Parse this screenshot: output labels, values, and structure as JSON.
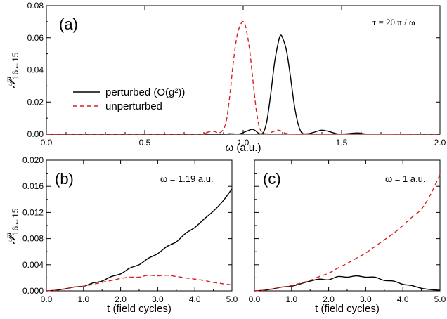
{
  "colors": {
    "perturbed": "#000000",
    "unperturbed": "#d62020"
  },
  "chart_data": [
    {
      "id": "a",
      "type": "line",
      "panel_label": "(a)",
      "annotation": "τ = 20 π / ω",
      "xlabel": "ω (a.u.)",
      "ylabel_main": "𝒫",
      "ylabel_sub": "16←15",
      "xlim": [
        0.0,
        2.0
      ],
      "ylim": [
        0.0,
        0.08
      ],
      "xticks": [
        "0.0",
        "0.5",
        "1.0",
        "1.5",
        "2.0"
      ],
      "yticks": [
        "0.00",
        "0.02",
        "0.04",
        "0.06",
        "0.08"
      ],
      "legend": {
        "position": "center-left",
        "entries": [
          "perturbed (O(g²))",
          "unperturbed"
        ]
      },
      "series": [
        {
          "name": "perturbed (O(g²))",
          "style": "solid",
          "x": [
            0.0,
            0.85,
            0.93,
            0.98,
            1.02,
            1.05,
            1.08,
            1.1,
            1.12,
            1.14,
            1.16,
            1.18,
            1.19,
            1.2,
            1.22,
            1.24,
            1.26,
            1.28,
            1.3,
            1.33,
            1.36,
            1.4,
            1.44,
            1.48,
            1.52,
            1.58,
            1.62,
            1.7,
            2.0
          ],
          "y": [
            0.0,
            0.0,
            0.0003,
            0.0002,
            0.002,
            0.003,
            0.0005,
            0.0005,
            0.008,
            0.025,
            0.045,
            0.058,
            0.0615,
            0.06,
            0.052,
            0.036,
            0.018,
            0.006,
            0.0005,
            0.0003,
            0.0012,
            0.0025,
            0.0015,
            0.0002,
            0.0002,
            0.0008,
            0.0002,
            0.0001,
            0.0
          ]
        },
        {
          "name": "unperturbed",
          "style": "dashed",
          "x": [
            0.0,
            0.75,
            0.8,
            0.85,
            0.88,
            0.91,
            0.93,
            0.95,
            0.97,
            0.99,
            1.0,
            1.01,
            1.03,
            1.05,
            1.07,
            1.09,
            1.12,
            1.15,
            1.18,
            1.21,
            1.24,
            1.3,
            2.0
          ],
          "y": [
            0.0,
            0.0,
            0.0008,
            0.0018,
            0.0008,
            0.006,
            0.022,
            0.045,
            0.062,
            0.069,
            0.07,
            0.068,
            0.055,
            0.033,
            0.012,
            0.002,
            0.0002,
            0.0015,
            0.0025,
            0.0008,
            0.0001,
            0.0,
            0.0
          ]
        }
      ]
    },
    {
      "id": "b",
      "type": "line",
      "panel_label": "(b)",
      "annotation": "ω = 1.19 a.u.",
      "xlabel": "t (field cycles)",
      "ylabel_main": "𝒫",
      "ylabel_sub": "16←15",
      "xlim": [
        0.0,
        5.0
      ],
      "ylim": [
        0.0,
        0.02
      ],
      "xticks": [
        "0.0",
        "1.0",
        "2.0",
        "3.0",
        "4.0",
        "5.0"
      ],
      "yticks": [
        "0.000",
        "0.004",
        "0.008",
        "0.012",
        "0.016",
        "0.020"
      ],
      "series": [
        {
          "name": "perturbed (O(g²))",
          "style": "solid",
          "x": [
            0.0,
            0.25,
            0.5,
            0.75,
            1.0,
            1.25,
            1.5,
            1.75,
            2.0,
            2.25,
            2.5,
            2.75,
            3.0,
            3.25,
            3.5,
            3.75,
            4.0,
            4.25,
            4.5,
            4.75,
            5.0
          ],
          "y": [
            0.0,
            0.0001,
            0.0003,
            0.0006,
            0.0007,
            0.0012,
            0.0015,
            0.0022,
            0.0026,
            0.0035,
            0.004,
            0.005,
            0.0057,
            0.0068,
            0.0075,
            0.0088,
            0.0097,
            0.011,
            0.0122,
            0.0137,
            0.0156
          ]
        },
        {
          "name": "unperturbed",
          "style": "dashed",
          "x": [
            0.0,
            0.25,
            0.5,
            0.75,
            1.0,
            1.25,
            1.5,
            1.75,
            2.0,
            2.25,
            2.5,
            2.75,
            3.0,
            3.25,
            3.5,
            3.75,
            4.0,
            4.25,
            4.5,
            4.75,
            5.0
          ],
          "y": [
            0.0,
            0.0001,
            0.0003,
            0.0006,
            0.0007,
            0.001,
            0.0013,
            0.0016,
            0.0019,
            0.0021,
            0.0021,
            0.0024,
            0.0023,
            0.0024,
            0.0022,
            0.002,
            0.0018,
            0.0016,
            0.0013,
            0.0011,
            0.0009
          ]
        }
      ]
    },
    {
      "id": "c",
      "type": "line",
      "panel_label": "(c)",
      "annotation": "ω = 1 a.u.",
      "xlabel": "t (field cycles)",
      "xlim": [
        0.0,
        5.0
      ],
      "ylim": [
        0.0,
        0.02
      ],
      "xticks": [
        "0.0",
        "1.0",
        "2.0",
        "3.0",
        "4.0",
        "5.0"
      ],
      "yticks": [],
      "series": [
        {
          "name": "perturbed (O(g²))",
          "style": "solid",
          "x": [
            0.0,
            0.25,
            0.5,
            0.75,
            1.0,
            1.25,
            1.5,
            1.75,
            2.0,
            2.25,
            2.5,
            2.75,
            3.0,
            3.25,
            3.5,
            3.75,
            4.0,
            4.25,
            4.5,
            4.75,
            5.0
          ],
          "y": [
            0.0,
            0.0001,
            0.0003,
            0.0006,
            0.0007,
            0.0011,
            0.0015,
            0.0018,
            0.0017,
            0.0022,
            0.0021,
            0.0023,
            0.0021,
            0.0021,
            0.0016,
            0.0015,
            0.001,
            0.0008,
            0.0004,
            0.0002,
            0.0001
          ]
        },
        {
          "name": "unperturbed",
          "style": "dashed",
          "x": [
            0.0,
            0.25,
            0.5,
            0.75,
            1.0,
            1.25,
            1.5,
            1.75,
            2.0,
            2.25,
            2.5,
            2.75,
            3.0,
            3.25,
            3.5,
            3.75,
            4.0,
            4.25,
            4.5,
            4.75,
            5.0
          ],
          "y": [
            0.0,
            0.0001,
            0.0003,
            0.0006,
            0.0008,
            0.0012,
            0.0016,
            0.0022,
            0.0027,
            0.0035,
            0.0042,
            0.005,
            0.0058,
            0.0068,
            0.0078,
            0.0088,
            0.01,
            0.0113,
            0.0125,
            0.0148,
            0.0178
          ]
        }
      ]
    }
  ]
}
